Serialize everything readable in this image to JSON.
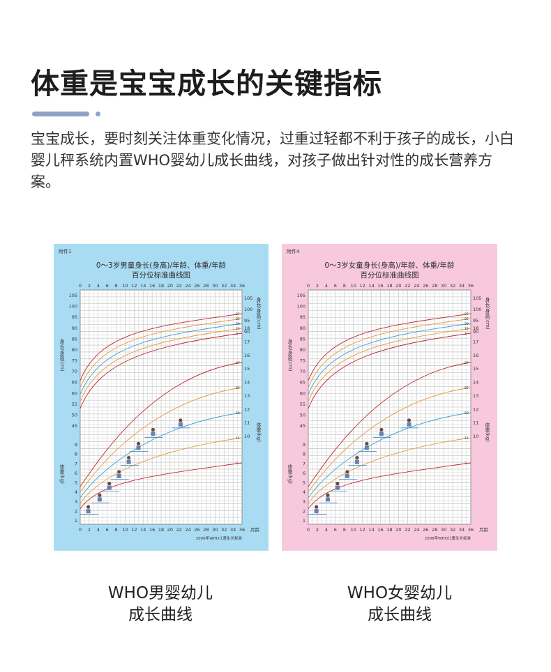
{
  "header": {
    "title": "体重是宝宝成长的关键指标",
    "accent_color": "#8ea3c6"
  },
  "description": {
    "text": "宝宝成长，要时刻关注体重变化情况，过重过轻都不利于孩子的成长，小白婴儿秤系统内置WHO婴幼儿成长曲线，对孩子做出针对性的成长营养方案。"
  },
  "charts": {
    "boy": {
      "background": "#a9dcf3",
      "tag": "附件1",
      "title_line1": "0～3岁男童身长(身高)/年龄、体重/年龄",
      "title_line2": "百分位标准曲线图",
      "footer": "2006年WHO儿童生长标准",
      "height_axis_label": "身长/身高(cm)",
      "weight_axis_label": "体重(kg)",
      "month_unit": "月龄"
    },
    "girl": {
      "background": "#f8c9dc",
      "tag": "附件4",
      "title_line1": "0～3岁女童身长(身高)/年龄、体重/年龄",
      "title_line2": "百分位标准曲线图",
      "footer": "2006年WHO儿童生长标准",
      "height_axis_label": "身长/身高(cm)",
      "weight_axis_label": "体重(kg)",
      "month_unit": "月龄"
    },
    "month_ticks": [
      "0",
      "2",
      "4",
      "6",
      "8",
      "10",
      "12",
      "14",
      "16",
      "18",
      "20",
      "22",
      "24",
      "26",
      "28",
      "30",
      "32",
      "34",
      "36"
    ],
    "height_ticks": [
      "45",
      "50",
      "55",
      "60",
      "65",
      "70",
      "75",
      "80",
      "85",
      "90",
      "95",
      "100",
      "105"
    ],
    "height_ticks_right": [
      "90",
      "95",
      "100",
      "105"
    ],
    "weight_ticks_right": [
      "10",
      "11",
      "12",
      "13",
      "14",
      "15",
      "16",
      "17",
      "18"
    ],
    "weight_ticks_left": [
      "1",
      "2",
      "3",
      "4",
      "5",
      "6",
      "7",
      "8",
      "9"
    ],
    "percentiles": [
      "3",
      "15",
      "50",
      "85",
      "97"
    ],
    "curve_colors": [
      "#c1272d",
      "#e89a3c",
      "#3aa0d4",
      "#e89a3c",
      "#c1272d"
    ]
  },
  "captions": {
    "boy": {
      "line1": "WHO男婴幼儿",
      "line2": "成长曲线"
    },
    "girl": {
      "line1": "WHO女婴幼儿",
      "line2": "成长曲线"
    }
  }
}
